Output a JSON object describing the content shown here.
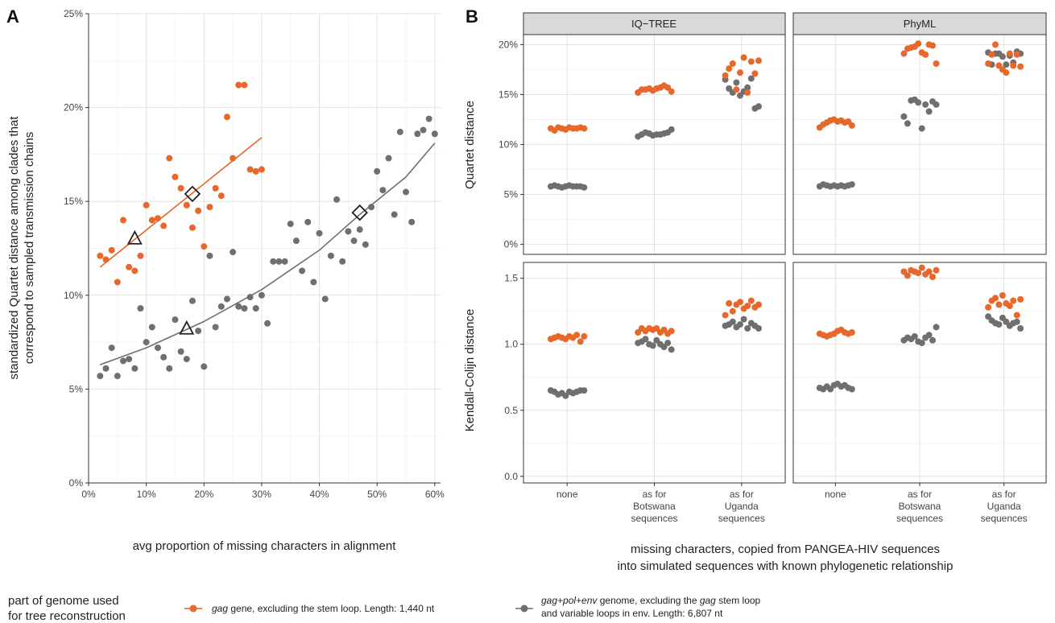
{
  "colors": {
    "orange": "#E8672A",
    "gray": "#6F6F6F",
    "grid": "#E2E2E2",
    "panel_border": "#333333",
    "strip_fill": "#D9D9D9"
  },
  "panel_a": {
    "tag": "A",
    "xlabel": "avg proportion of missing characters in alignment",
    "ylabel_line1": "standardized Quartet distance among clades that",
    "ylabel_line2": "correspond to sampled transmission chains"
  },
  "panel_b": {
    "tag": "B",
    "xlabel_line1": "missing characters, copied from PANGEA-HIV sequences",
    "xlabel_line2": "into simulated sequences with known phylogenetic relationship",
    "strips": [
      "IQ−TREE",
      "PhyML"
    ],
    "row_labels": [
      "Quartet distance",
      "Kendall-Colijn distance"
    ],
    "categories": [
      {
        "line1": "none",
        "line2": "",
        "line3": ""
      },
      {
        "line1": "as for",
        "line2": "Botswana",
        "line3": "sequences"
      },
      {
        "line1": "as for",
        "line2": "Uganda",
        "line3": "sequences"
      }
    ]
  },
  "legend": {
    "title_line1": "part of genome used",
    "title_line2": "for tree reconstruction",
    "orange_italic": "gag",
    "orange_rest": " gene, excluding the stem loop. Length: 1,440 nt",
    "gray_line1_a": "gag+pol+env",
    "gray_line1_b": " genome, excluding the ",
    "gray_line1_c": "gag",
    "gray_line1_d": " stem loop",
    "gray_line2": "and variable loops in env. Length: 6,807 nt"
  },
  "chart_data": [
    {
      "type": "scatter",
      "panel": "A",
      "xlabel": "avg proportion of missing characters in alignment",
      "ylabel": "standardized Quartet distance among clades that correspond to sampled transmission chains",
      "xlim": [
        0,
        0.61
      ],
      "ylim": [
        0,
        0.25
      ],
      "x_ticks": [
        0,
        0.1,
        0.2,
        0.3,
        0.4,
        0.5,
        0.6
      ],
      "x_tick_labels": [
        "0%",
        "10%",
        "20%",
        "30%",
        "40%",
        "50%",
        "60%"
      ],
      "y_ticks": [
        0,
        0.05,
        0.1,
        0.15,
        0.2,
        0.25
      ],
      "y_tick_labels": [
        "0%",
        "5%",
        "10%",
        "15%",
        "20%",
        "25%"
      ],
      "grid": true,
      "series": [
        {
          "name": "gag gene, excluding the stem loop. Length: 1,440 nt",
          "color": "orange",
          "points": [
            [
              0.02,
              0.121
            ],
            [
              0.03,
              0.119
            ],
            [
              0.04,
              0.124
            ],
            [
              0.05,
              0.107
            ],
            [
              0.06,
              0.14
            ],
            [
              0.07,
              0.115
            ],
            [
              0.08,
              0.113
            ],
            [
              0.09,
              0.121
            ],
            [
              0.1,
              0.148
            ],
            [
              0.11,
              0.14
            ],
            [
              0.12,
              0.141
            ],
            [
              0.13,
              0.137
            ],
            [
              0.14,
              0.173
            ],
            [
              0.15,
              0.163
            ],
            [
              0.16,
              0.157
            ],
            [
              0.17,
              0.148
            ],
            [
              0.18,
              0.136
            ],
            [
              0.19,
              0.145
            ],
            [
              0.2,
              0.126
            ],
            [
              0.21,
              0.147
            ],
            [
              0.22,
              0.157
            ],
            [
              0.23,
              0.153
            ],
            [
              0.24,
              0.195
            ],
            [
              0.25,
              0.173
            ],
            [
              0.26,
              0.212
            ],
            [
              0.27,
              0.212
            ],
            [
              0.28,
              0.167
            ],
            [
              0.29,
              0.166
            ],
            [
              0.3,
              0.167
            ]
          ],
          "fit": {
            "x0": 0.02,
            "y0": 0.115,
            "x1": 0.3,
            "y1": 0.184
          },
          "markers": [
            {
              "shape": "triangle",
              "x": 0.08,
              "y": 0.13
            },
            {
              "shape": "diamond",
              "x": 0.18,
              "y": 0.154
            }
          ]
        },
        {
          "name": "gag+pol+env genome, excluding the gag stem loop and variable loops in env. Length: 6,807 nt",
          "color": "gray",
          "points": [
            [
              0.02,
              0.057
            ],
            [
              0.03,
              0.061
            ],
            [
              0.04,
              0.072
            ],
            [
              0.05,
              0.057
            ],
            [
              0.06,
              0.065
            ],
            [
              0.07,
              0.066
            ],
            [
              0.08,
              0.061
            ],
            [
              0.09,
              0.093
            ],
            [
              0.1,
              0.075
            ],
            [
              0.11,
              0.083
            ],
            [
              0.12,
              0.072
            ],
            [
              0.13,
              0.067
            ],
            [
              0.14,
              0.061
            ],
            [
              0.15,
              0.087
            ],
            [
              0.16,
              0.07
            ],
            [
              0.17,
              0.066
            ],
            [
              0.18,
              0.097
            ],
            [
              0.19,
              0.081
            ],
            [
              0.2,
              0.062
            ],
            [
              0.21,
              0.121
            ],
            [
              0.22,
              0.083
            ],
            [
              0.23,
              0.094
            ],
            [
              0.24,
              0.098
            ],
            [
              0.25,
              0.123
            ],
            [
              0.26,
              0.094
            ],
            [
              0.27,
              0.093
            ],
            [
              0.28,
              0.099
            ],
            [
              0.29,
              0.093
            ],
            [
              0.3,
              0.1
            ],
            [
              0.31,
              0.085
            ],
            [
              0.32,
              0.118
            ],
            [
              0.33,
              0.118
            ],
            [
              0.34,
              0.118
            ],
            [
              0.35,
              0.138
            ],
            [
              0.36,
              0.129
            ],
            [
              0.37,
              0.113
            ],
            [
              0.38,
              0.139
            ],
            [
              0.39,
              0.107
            ],
            [
              0.4,
              0.133
            ],
            [
              0.41,
              0.098
            ],
            [
              0.42,
              0.121
            ],
            [
              0.43,
              0.151
            ],
            [
              0.44,
              0.118
            ],
            [
              0.45,
              0.134
            ],
            [
              0.46,
              0.129
            ],
            [
              0.47,
              0.135
            ],
            [
              0.48,
              0.127
            ],
            [
              0.49,
              0.147
            ],
            [
              0.5,
              0.166
            ],
            [
              0.51,
              0.156
            ],
            [
              0.52,
              0.173
            ],
            [
              0.53,
              0.143
            ],
            [
              0.54,
              0.187
            ],
            [
              0.55,
              0.155
            ],
            [
              0.56,
              0.139
            ],
            [
              0.57,
              0.186
            ],
            [
              0.58,
              0.188
            ],
            [
              0.59,
              0.194
            ],
            [
              0.6,
              0.186
            ]
          ],
          "fit_curve": [
            [
              0.02,
              0.063
            ],
            [
              0.1,
              0.072
            ],
            [
              0.2,
              0.086
            ],
            [
              0.3,
              0.103
            ],
            [
              0.4,
              0.124
            ],
            [
              0.47,
              0.143
            ],
            [
              0.55,
              0.163
            ],
            [
              0.6,
              0.181
            ]
          ],
          "markers": [
            {
              "shape": "triangle",
              "x": 0.17,
              "y": 0.082
            },
            {
              "shape": "diamond",
              "x": 0.47,
              "y": 0.144
            }
          ]
        }
      ]
    },
    {
      "type": "scatter",
      "panel": "B",
      "facets_columns": [
        "IQ−TREE",
        "PhyML"
      ],
      "facets_rows": [
        "Quartet distance",
        "Kendall-Colijn distance"
      ],
      "categories": [
        "none",
        "as for Botswana sequences",
        "as for Uganda sequences"
      ],
      "quartet_ylim": [
        -0.01,
        0.21
      ],
      "quartet_y_ticks": [
        0,
        0.05,
        0.1,
        0.15,
        0.2
      ],
      "quartet_y_tick_labels": [
        "0%",
        "5%",
        "10%",
        "15%",
        "20%"
      ],
      "kc_ylim": [
        -0.05,
        1.62
      ],
      "kc_y_ticks": [
        0,
        0.5,
        1.0,
        1.5
      ],
      "kc_y_tick_labels": [
        "0.0",
        "0.5",
        "1.0",
        "1.5"
      ],
      "cells": {
        "IQ-TREE|Quartet distance": {
          "orange": [
            [
              0.116,
              0.114,
              0.117,
              0.116,
              0.115,
              0.117,
              0.116,
              0.116,
              0.117,
              0.116
            ],
            [
              0.152,
              0.155,
              0.155,
              0.156,
              0.154,
              0.156,
              0.157,
              0.159,
              0.157,
              0.153
            ],
            [
              0.169,
              0.176,
              0.181,
              0.155,
              0.172,
              0.187,
              0.152,
              0.183,
              0.171,
              0.184
            ]
          ],
          "gray": [
            [
              0.058,
              0.059,
              0.058,
              0.057,
              0.058,
              0.059,
              0.058,
              0.058,
              0.058,
              0.057
            ],
            [
              0.108,
              0.11,
              0.112,
              0.111,
              0.109,
              0.11,
              0.11,
              0.111,
              0.112,
              0.115
            ],
            [
              0.165,
              0.156,
              0.152,
              0.162,
              0.149,
              0.153,
              0.157,
              0.166,
              0.136,
              0.138
            ]
          ]
        },
        "PhyML|Quartet distance": {
          "orange": [
            [
              0.117,
              0.12,
              0.122,
              0.124,
              0.125,
              0.123,
              0.124,
              0.122,
              0.123,
              0.119
            ],
            [
              0.191,
              0.196,
              0.197,
              0.198,
              0.201,
              0.192,
              0.19,
              0.2,
              0.199,
              0.181
            ],
            [
              0.181,
              0.19,
              0.2,
              0.179,
              0.175,
              0.172,
              0.191,
              0.179,
              0.19,
              0.178
            ]
          ],
          "gray": [
            [
              0.058,
              0.06,
              0.059,
              0.058,
              0.059,
              0.058,
              0.059,
              0.058,
              0.059,
              0.06
            ],
            [
              0.128,
              0.121,
              0.144,
              0.145,
              0.142,
              0.116,
              0.14,
              0.133,
              0.143,
              0.14
            ],
            [
              0.192,
              0.18,
              0.191,
              0.191,
              0.188,
              0.18,
              0.189,
              0.182,
              0.193,
              0.191
            ]
          ]
        },
        "IQ-TREE|Kendall-Colijn distance": {
          "orange": [
            [
              1.04,
              1.05,
              1.06,
              1.05,
              1.04,
              1.06,
              1.05,
              1.07,
              1.02,
              1.06
            ],
            [
              1.09,
              1.12,
              1.1,
              1.12,
              1.11,
              1.12,
              1.09,
              1.11,
              1.08,
              1.1
            ],
            [
              1.22,
              1.31,
              1.25,
              1.3,
              1.32,
              1.27,
              1.29,
              1.33,
              1.28,
              1.3
            ]
          ],
          "gray": [
            [
              0.65,
              0.64,
              0.62,
              0.63,
              0.61,
              0.64,
              0.63,
              0.64,
              0.65,
              0.65
            ],
            [
              1.01,
              1.02,
              1.04,
              1.0,
              0.99,
              1.03,
              1.0,
              0.98,
              1.01,
              0.96
            ],
            [
              1.14,
              1.15,
              1.17,
              1.13,
              1.15,
              1.19,
              1.12,
              1.16,
              1.14,
              1.12
            ]
          ]
        },
        "PhyML|Kendall-Colijn distance": {
          "orange": [
            [
              1.08,
              1.07,
              1.06,
              1.07,
              1.08,
              1.1,
              1.11,
              1.09,
              1.08,
              1.09
            ],
            [
              1.55,
              1.52,
              1.56,
              1.55,
              1.54,
              1.58,
              1.53,
              1.55,
              1.51,
              1.56
            ],
            [
              1.28,
              1.33,
              1.35,
              1.3,
              1.37,
              1.31,
              1.29,
              1.33,
              1.22,
              1.34
            ]
          ],
          "gray": [
            [
              0.67,
              0.66,
              0.68,
              0.66,
              0.69,
              0.7,
              0.68,
              0.69,
              0.67,
              0.66
            ],
            [
              1.03,
              1.05,
              1.04,
              1.06,
              1.02,
              1.01,
              1.05,
              1.07,
              1.03,
              1.13
            ],
            [
              1.21,
              1.18,
              1.16,
              1.15,
              1.2,
              1.17,
              1.14,
              1.16,
              1.17,
              1.12
            ]
          ]
        }
      }
    }
  ]
}
